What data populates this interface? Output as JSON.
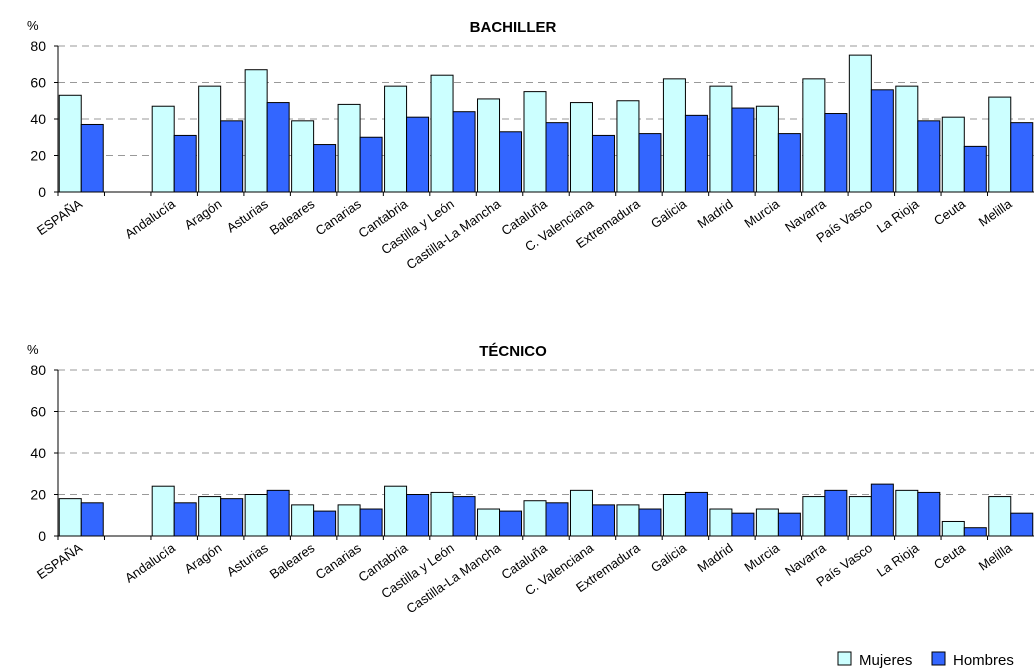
{
  "chart_data": [
    {
      "type": "bar",
      "title": "BACHILLER",
      "ylabel": "%",
      "ylim": [
        0,
        80
      ],
      "yticks": [
        0,
        20,
        40,
        60,
        80
      ],
      "grid": true,
      "categories": [
        "ESPAÑA",
        "",
        "Andalucía",
        "Aragón",
        "Asturias",
        "Baleares",
        "Canarias",
        "Cantabria",
        "Castilla y León",
        "Castilla-La Mancha",
        "Cataluña",
        "C. Valenciana",
        "Extremadura",
        "Galicia",
        "Madrid",
        "Murcia",
        "Navarra",
        "País Vasco",
        "La Rioja",
        "Ceuta",
        "Melilla"
      ],
      "series": [
        {
          "name": "Mujeres",
          "color": "#ccffff",
          "values": [
            53,
            null,
            47,
            58,
            67,
            39,
            48,
            58,
            64,
            51,
            55,
            49,
            50,
            62,
            58,
            47,
            62,
            75,
            58,
            41,
            52
          ]
        },
        {
          "name": "Hombres",
          "color": "#3366ff",
          "values": [
            37,
            null,
            31,
            39,
            49,
            26,
            30,
            41,
            44,
            33,
            38,
            31,
            32,
            42,
            46,
            32,
            43,
            56,
            39,
            25,
            38
          ]
        }
      ]
    },
    {
      "type": "bar",
      "title": "TÉCNICO",
      "ylabel": "%",
      "ylim": [
        0,
        80
      ],
      "yticks": [
        0,
        20,
        40,
        60,
        80
      ],
      "grid": true,
      "categories": [
        "ESPAÑA",
        "",
        "Andalucía",
        "Aragón",
        "Asturias",
        "Baleares",
        "Canarias",
        "Cantabria",
        "Castilla y León",
        "Castilla-La Mancha",
        "Cataluña",
        "C. Valenciana",
        "Extremadura",
        "Galicia",
        "Madrid",
        "Murcia",
        "Navarra",
        "País Vasco",
        "La Rioja",
        "Ceuta",
        "Melilla"
      ],
      "series": [
        {
          "name": "Mujeres",
          "color": "#ccffff",
          "values": [
            18,
            null,
            24,
            19,
            20,
            15,
            15,
            24,
            21,
            13,
            17,
            22,
            15,
            20,
            13,
            13,
            19,
            19,
            22,
            7,
            19
          ]
        },
        {
          "name": "Hombres",
          "color": "#3366ff",
          "values": [
            16,
            null,
            16,
            18,
            22,
            12,
            13,
            20,
            19,
            12,
            16,
            15,
            13,
            21,
            11,
            11,
            22,
            25,
            21,
            4,
            11
          ]
        }
      ]
    }
  ],
  "legend": {
    "placement": "bottom-right",
    "items": [
      {
        "label": "Mujeres",
        "color": "#ccffff"
      },
      {
        "label": "Hombres",
        "color": "#3366ff"
      }
    ]
  }
}
